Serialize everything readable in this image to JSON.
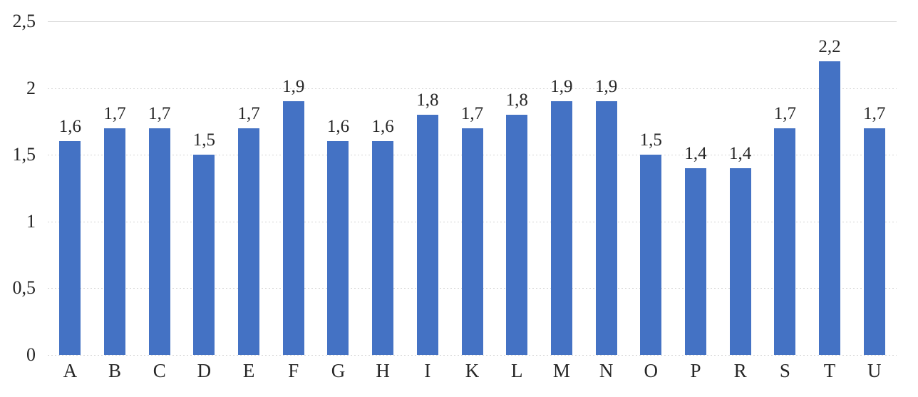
{
  "chart_data": {
    "type": "bar",
    "title": "",
    "xlabel": "",
    "ylabel": "",
    "categories": [
      "A",
      "B",
      "C",
      "D",
      "E",
      "F",
      "G",
      "H",
      "I",
      "K",
      "L",
      "M",
      "N",
      "O",
      "P",
      "R",
      "S",
      "T",
      "U"
    ],
    "values": [
      1.6,
      1.7,
      1.7,
      1.5,
      1.7,
      1.9,
      1.6,
      1.6,
      1.8,
      1.7,
      1.8,
      1.9,
      1.9,
      1.5,
      1.4,
      1.4,
      1.7,
      2.2,
      1.7
    ],
    "value_labels": [
      "1,6",
      "1,7",
      "1,7",
      "1,5",
      "1,7",
      "1,9",
      "1,6",
      "1,6",
      "1,8",
      "1,7",
      "1,8",
      "1,9",
      "1,9",
      "1,5",
      "1,4",
      "1,4",
      "1,7",
      "2,2",
      "1,7"
    ],
    "y_tick_values": [
      0,
      0.5,
      1,
      1.5,
      2,
      2.5
    ],
    "y_tick_labels": [
      "0",
      "0,5",
      "1",
      "1,5",
      "2",
      "2,5"
    ],
    "ylim": [
      0,
      2.5
    ],
    "grid": true,
    "legend": "none",
    "bar_color": "#4472C4",
    "gridline_color": "#d4d4d4",
    "text_color": "#262626",
    "decimal_separator": ","
  }
}
